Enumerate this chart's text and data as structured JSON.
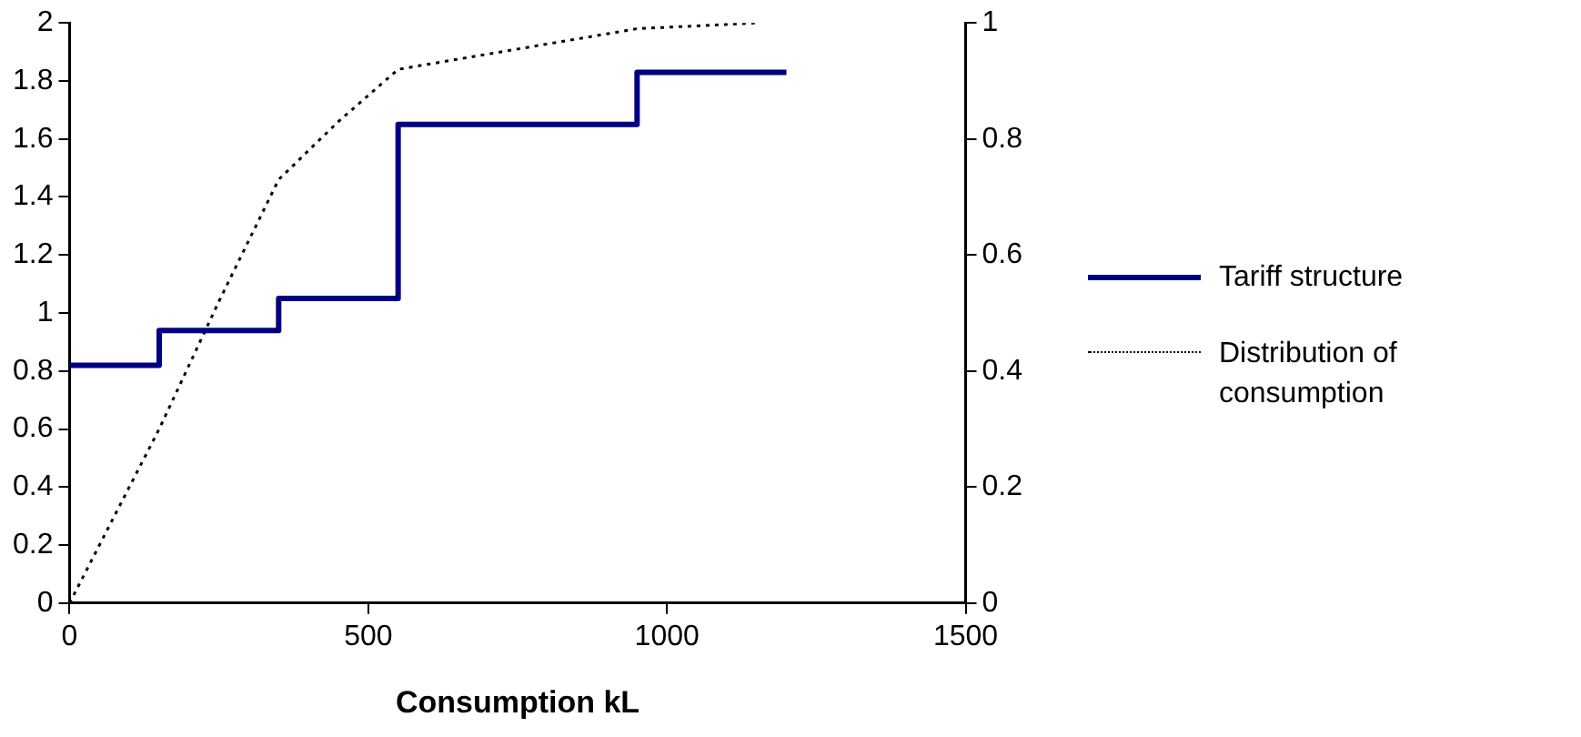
{
  "chart_data": {
    "type": "line",
    "xlabel": "Consumption kL",
    "xlim": [
      0,
      1500
    ],
    "xticks": [
      0,
      500,
      1000,
      1500
    ],
    "ylim": [
      0,
      2
    ],
    "yticks": [
      0,
      0.2,
      0.4,
      0.6,
      0.8,
      1,
      1.2,
      1.4,
      1.6,
      1.8,
      2
    ],
    "y2lim": [
      0,
      1
    ],
    "y2ticks": [
      0,
      0.2,
      0.4,
      0.6,
      0.8,
      1
    ],
    "grid": false,
    "legend": "right",
    "marker": "none",
    "series": [
      {
        "name": "Tariff structure",
        "type": "step",
        "color": "#000080",
        "line_style": "solid",
        "x": [
          0,
          150,
          350,
          550,
          950,
          1200
        ],
        "values": [
          0.82,
          0.94,
          1.05,
          1.65,
          1.83,
          1.83
        ]
      },
      {
        "name": "Distribution of consumption",
        "axis": "y2",
        "color": "#000000",
        "line_style": "dotted",
        "x": [
          0,
          150,
          250,
          350,
          450,
          550,
          750,
          950,
          1150
        ],
        "values": [
          0,
          0.3,
          0.52,
          0.73,
          0.83,
          0.92,
          0.955,
          0.99,
          1.0
        ]
      }
    ]
  }
}
